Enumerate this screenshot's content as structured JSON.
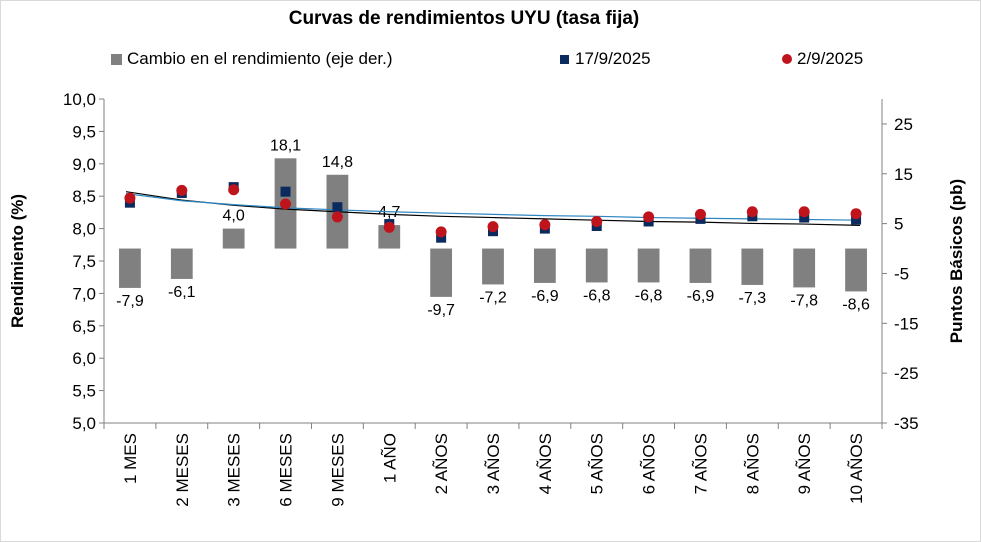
{
  "chart_data": {
    "type": "bar",
    "title": "Curvas de rendimientos UYU (tasa fija)",
    "ylabel": "Rendimiento (%)",
    "y2label": "Puntos Básicos (pb)",
    "ylim": [
      5.0,
      10.0
    ],
    "y2lim": [
      -35,
      30
    ],
    "yticks": [
      "10,0",
      "9,5",
      "9,0",
      "8,5",
      "8,0",
      "7,5",
      "7,0",
      "6,5",
      "6,0",
      "5,5",
      "5,0"
    ],
    "y2ticks": [
      "25",
      "15",
      "5",
      "-5",
      "-15",
      "-25",
      "-35"
    ],
    "categories": [
      "1 MES",
      "2 MESES",
      "3 MESES",
      "6 MESES",
      "9 MESES",
      "1 AÑO",
      "2 AÑOS",
      "3 AÑOS",
      "4 AÑOS",
      "5 AÑOS",
      "6 AÑOS",
      "7 AÑOS",
      "8 AÑOS",
      "9 AÑOS",
      "10 AÑOS"
    ],
    "series": [
      {
        "name": "Cambio en el rendimiento (eje der.)",
        "type": "bar",
        "axis": "right",
        "color": "#808080",
        "values": [
          -7.9,
          -6.1,
          4.0,
          18.1,
          14.8,
          4.7,
          -9.7,
          -7.2,
          -6.9,
          -6.8,
          -6.8,
          -6.9,
          -7.3,
          -7.8,
          -8.6
        ],
        "labels": [
          "-7,9",
          "-6,1",
          "4,0",
          "18,1",
          "14,8",
          "4,7",
          "-9,7",
          "-7,2",
          "-6,9",
          "-6,8",
          "-6,8",
          "-6,9",
          "-7,3",
          "-7,8",
          "-8,6"
        ]
      },
      {
        "name": "17/9/2025",
        "type": "scatter",
        "marker": "square",
        "axis": "left",
        "color": "#0b2a5e",
        "values": [
          8.4,
          8.55,
          8.64,
          8.57,
          8.33,
          8.07,
          7.86,
          7.96,
          8.0,
          8.04,
          8.11,
          8.15,
          8.19,
          8.17,
          8.14
        ]
      },
      {
        "name": "2/9/2025",
        "type": "scatter",
        "marker": "circle",
        "axis": "left",
        "color": "#c0141c",
        "values": [
          8.47,
          8.59,
          8.6,
          8.38,
          8.18,
          8.02,
          7.95,
          8.03,
          8.06,
          8.11,
          8.18,
          8.22,
          8.26,
          8.26,
          8.23
        ]
      }
    ],
    "trendlines": [
      {
        "color": "#000000",
        "values": [
          8.57,
          8.44,
          8.36,
          8.3,
          8.26,
          8.22,
          8.19,
          8.17,
          8.15,
          8.13,
          8.11,
          8.1,
          8.08,
          8.07,
          8.05
        ]
      },
      {
        "color": "#2e86c1",
        "values": [
          8.54,
          8.43,
          8.37,
          8.32,
          8.29,
          8.26,
          8.24,
          8.22,
          8.2,
          8.19,
          8.17,
          8.16,
          8.15,
          8.14,
          8.13
        ]
      }
    ],
    "legend_position": "top"
  }
}
